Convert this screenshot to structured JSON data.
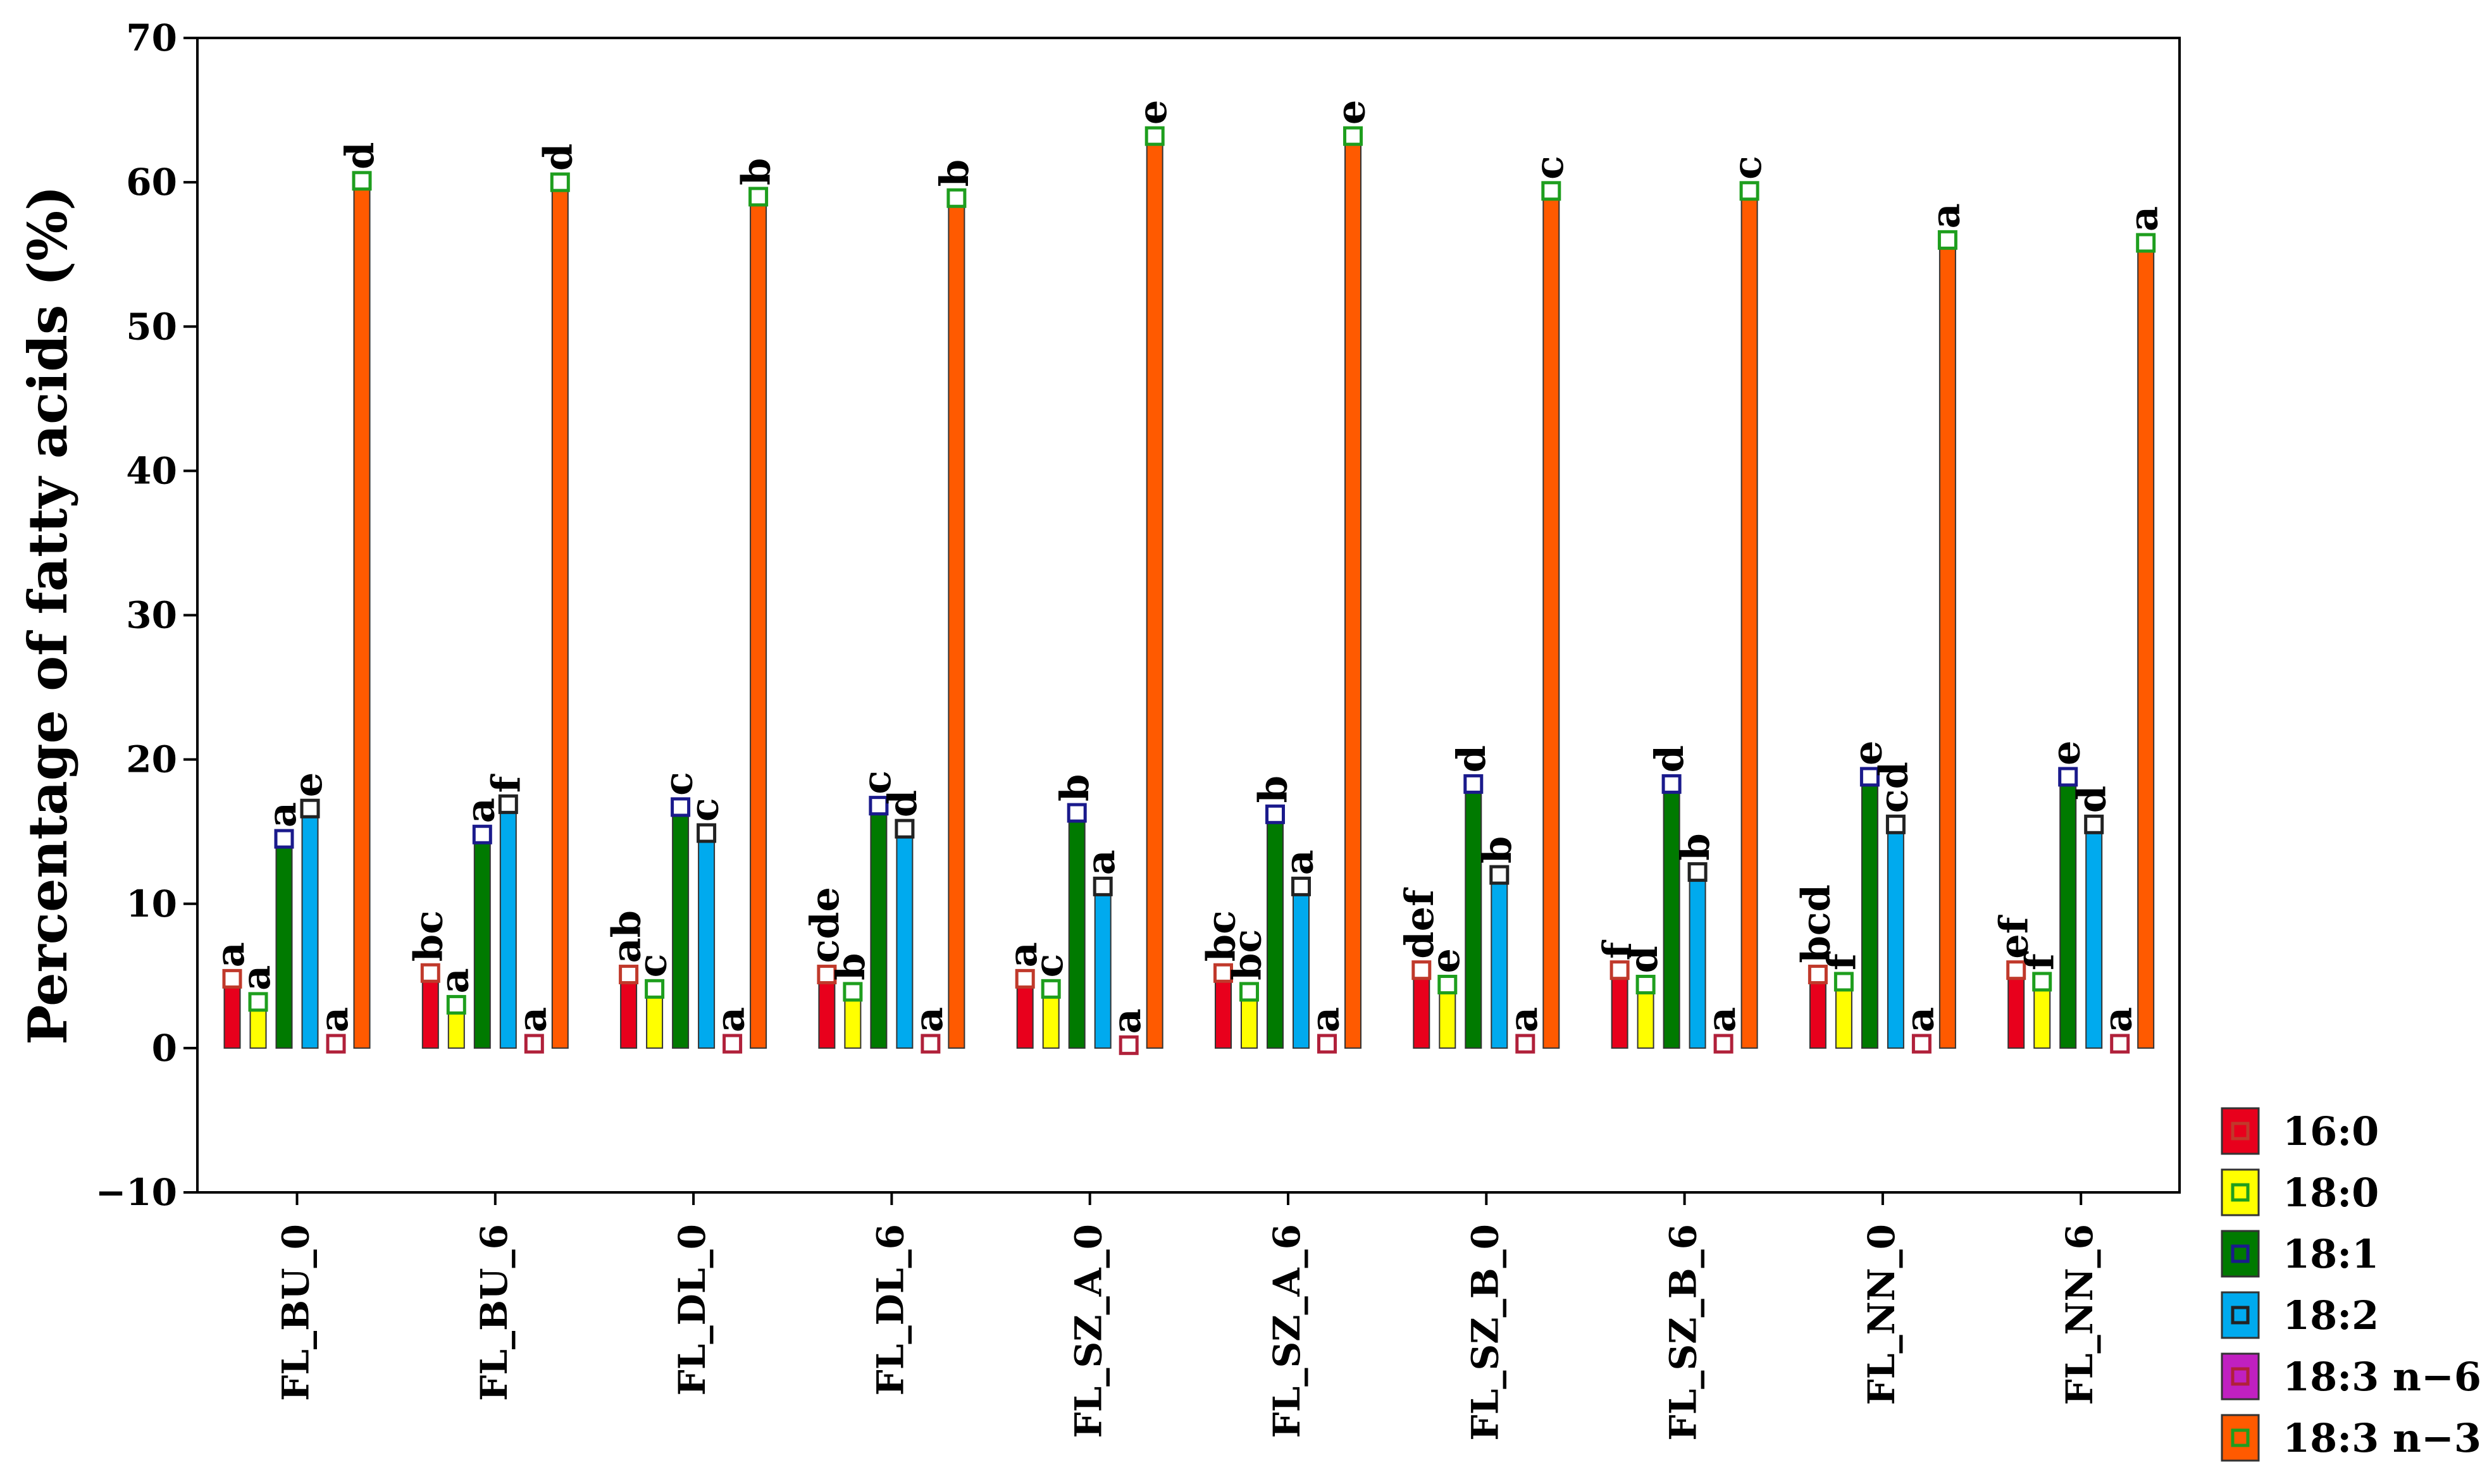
{
  "chart_data": {
    "type": "bar",
    "title": "",
    "xlabel": "",
    "ylabel": "Percentage of fatty acids (%)",
    "ylim": [
      -10,
      70
    ],
    "yticks": [
      -10,
      0,
      10,
      20,
      30,
      40,
      50,
      60,
      70
    ],
    "grid": false,
    "legend_position": "bottom-right outside",
    "categories": [
      "FL_BU_0",
      "FL_BU_6",
      "FL_DL_0",
      "FL_DL_6",
      "FL_SZ_A_0",
      "FL_SZ_A_6",
      "FL_SZ_B_0",
      "FL_SZ_B_6",
      "FL_NN_0",
      "FL_NN_6"
    ],
    "series": [
      {
        "name": "16:0",
        "color": "#e8001c",
        "marker": "#c0392b",
        "values": [
          4.8,
          5.2,
          5.1,
          5.1,
          4.8,
          5.2,
          5.4,
          5.4,
          5.1,
          5.4
        ],
        "labels": [
          "a",
          "bc",
          "ab",
          "cde",
          "a",
          "bc",
          "def",
          "f",
          "bcd",
          "ef"
        ]
      },
      {
        "name": "18:0",
        "color": "#ffff00",
        "marker": "#1e9e1e",
        "values": [
          3.2,
          3.0,
          4.1,
          3.9,
          4.1,
          3.9,
          4.4,
          4.4,
          4.6,
          4.6
        ],
        "labels": [
          "a",
          "a",
          "c",
          "b",
          "c",
          "bc",
          "e",
          "d",
          "f",
          "f"
        ]
      },
      {
        "name": "18:1",
        "color": "#007a00",
        "marker": "#1a1a8c",
        "values": [
          14.5,
          14.8,
          16.7,
          16.8,
          16.3,
          16.2,
          18.3,
          18.3,
          18.8,
          18.8
        ],
        "labels": [
          "a",
          "a",
          "c",
          "c",
          "b",
          "b",
          "d",
          "d",
          "e",
          "e"
        ]
      },
      {
        "name": "18:2",
        "color": "#00aaee",
        "marker": "#222222",
        "values": [
          16.6,
          16.9,
          14.9,
          15.2,
          11.2,
          11.2,
          12.0,
          12.2,
          15.5,
          15.5
        ],
        "labels": [
          "e",
          "f",
          "c",
          "d",
          "a",
          "a",
          "b",
          "b",
          "cd",
          "d"
        ]
      },
      {
        "name": "18:3 n−6",
        "color": "#c020c0",
        "marker": "#b0203a",
        "values": [
          0.3,
          0.3,
          0.3,
          0.3,
          0.2,
          0.3,
          0.3,
          0.3,
          0.3,
          0.3
        ],
        "labels": [
          "a",
          "a",
          "a",
          "a",
          "a",
          "a",
          "a",
          "a",
          "a",
          "a"
        ]
      },
      {
        "name": "18:3 n−3",
        "color": "#ff5a00",
        "marker": "#1e9e1e",
        "values": [
          60.1,
          60.0,
          59.0,
          58.9,
          63.2,
          63.2,
          59.4,
          59.4,
          56.0,
          55.8
        ],
        "labels": [
          "d",
          "d",
          "b",
          "b",
          "e",
          "e",
          "c",
          "c",
          "a",
          "a"
        ]
      }
    ]
  }
}
